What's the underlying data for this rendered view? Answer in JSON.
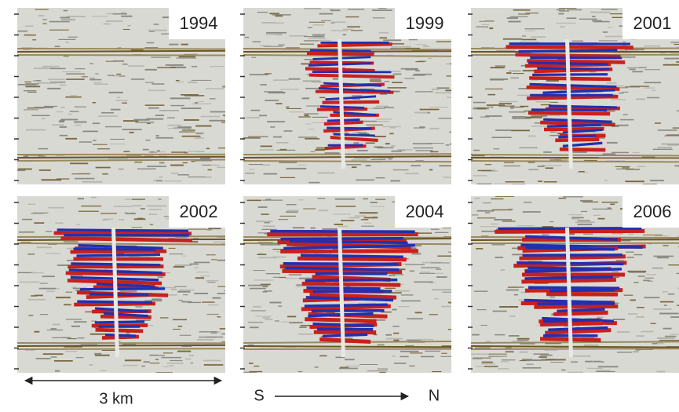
{
  "panels": [
    {
      "label": "1994"
    },
    {
      "label": "1999"
    },
    {
      "label": "2001"
    },
    {
      "label": "2002"
    },
    {
      "label": "2004"
    },
    {
      "label": "2006"
    }
  ],
  "scale_bar": {
    "label": "3 km"
  },
  "direction": {
    "start": "S",
    "end": "N"
  }
}
